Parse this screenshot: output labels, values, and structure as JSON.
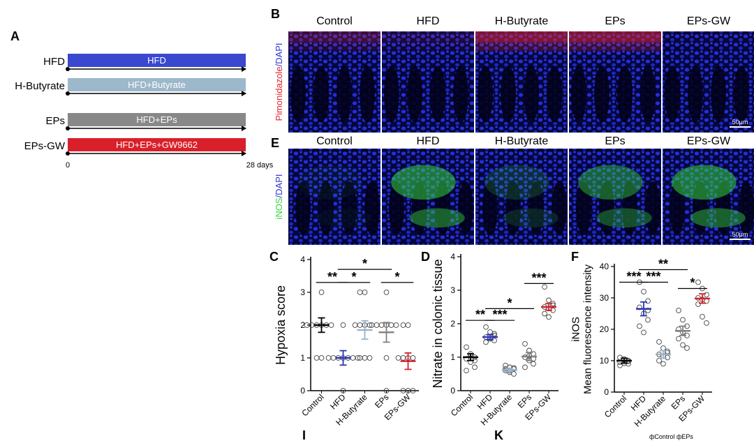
{
  "panels": {
    "A": "A",
    "B": "B",
    "C": "C",
    "D": "D",
    "E": "E",
    "F": "F",
    "G": "I",
    "H": "K"
  },
  "timeline": {
    "rows": [
      {
        "name": "HFD",
        "bar_label": "HFD",
        "color": "#3a47cf",
        "text_color": "#ffffff"
      },
      {
        "name": "H-Butyrate",
        "bar_label": "HFD+Butyrate",
        "color": "#9db8cb",
        "text_color": "#ffffff"
      },
      {
        "name": "EPs",
        "bar_label": "HFD+EPs",
        "color": "#888888",
        "text_color": "#ffffff"
      },
      {
        "name": "EPs-GW",
        "bar_label": "HFD+EPs+GW9662",
        "color": "#d9202a",
        "text_color": "#ffffff"
      }
    ],
    "axis_start": "0",
    "axis_end": "28 days"
  },
  "microscopy": {
    "groups": [
      "Control",
      "HFD",
      "H-Butyrate",
      "EPs",
      "EPs-GW"
    ],
    "row_b": {
      "label_red": "Pimonidazole",
      "label_blue": "/DAPI",
      "stain_color": "#e0232f",
      "scale_bar": "50μm"
    },
    "row_e": {
      "label_green": "iNOS",
      "label_blue": "/DAPI",
      "stain_color": "#35d33c",
      "scale_bar": "50μm"
    }
  },
  "chart_data": [
    {
      "type": "scatter",
      "panel": "C",
      "title": "",
      "xlabel": "",
      "ylabel": "Hypoxia score",
      "ylim": [
        0,
        4
      ],
      "yticks": [
        0,
        1,
        2,
        3,
        4
      ],
      "categories": [
        "Control",
        "HFD",
        "H-Butyrate",
        "EPs",
        "EPs-GW"
      ],
      "colors": [
        "#000000",
        "#2a35b8",
        "#9ab3c8",
        "#808080",
        "#d9202a"
      ],
      "means": [
        2.0,
        1.0,
        1.85,
        1.78,
        0.9
      ],
      "errors": [
        0.22,
        0.22,
        0.28,
        0.3,
        0.25
      ],
      "points": [
        [
          3,
          2,
          2,
          2,
          2,
          2,
          1,
          1,
          2
        ],
        [
          2,
          1,
          1,
          1,
          1,
          1,
          1,
          0,
          1
        ],
        [
          3,
          3,
          2,
          2,
          2,
          1,
          1,
          1,
          2
        ],
        [
          3,
          2,
          2,
          2,
          2,
          2,
          1,
          0,
          2
        ],
        [
          2,
          2,
          1,
          1,
          1,
          0,
          0,
          1,
          0
        ]
      ],
      "significance": [
        {
          "from": 0,
          "to": 1,
          "label": "**",
          "y": 3.3
        },
        {
          "from": 1,
          "to": 2,
          "label": "*",
          "y": 3.3
        },
        {
          "from": 1,
          "to": 3,
          "label": "*",
          "y": 3.7
        },
        {
          "from": 3,
          "to": 4,
          "label": "*",
          "y": 3.3
        }
      ]
    },
    {
      "type": "scatter",
      "panel": "D",
      "title": "",
      "xlabel": "",
      "ylabel": "Nitrate in colonic tissue",
      "ylim": [
        0,
        4
      ],
      "yticks": [
        0,
        1,
        2,
        3,
        4
      ],
      "categories": [
        "Control",
        "HFD",
        "H-Butyrate",
        "EPs",
        "EPs-GW"
      ],
      "colors": [
        "#000000",
        "#2a35b8",
        "#9ab3c8",
        "#808080",
        "#d9202a"
      ],
      "means": [
        1.0,
        1.6,
        0.62,
        1.02,
        2.5
      ],
      "errors": [
        0.1,
        0.08,
        0.05,
        0.12,
        0.1
      ],
      "points": [
        [
          1.3,
          1.1,
          1.0,
          0.95,
          0.85,
          0.7,
          0.6,
          1.05,
          0.9
        ],
        [
          1.9,
          1.75,
          1.65,
          1.6,
          1.55,
          1.5,
          1.45,
          1.6,
          1.7
        ],
        [
          0.75,
          0.7,
          0.65,
          0.6,
          0.55,
          0.5,
          0.65,
          0.6,
          0.68
        ],
        [
          1.4,
          1.2,
          1.1,
          1.0,
          0.9,
          0.8,
          0.7,
          1.05,
          0.95
        ],
        [
          3.1,
          2.7,
          2.6,
          2.5,
          2.45,
          2.4,
          2.3,
          2.2,
          2.55
        ]
      ],
      "significance": [
        {
          "from": 0,
          "to": 1,
          "label": "**",
          "y": 2.1
        },
        {
          "from": 1,
          "to": 2,
          "label": "***",
          "y": 2.1
        },
        {
          "from": 1,
          "to": 3,
          "label": "*",
          "y": 2.45
        },
        {
          "from": 3,
          "to": 4,
          "label": "***",
          "y": 3.2
        }
      ]
    },
    {
      "type": "scatter",
      "panel": "F",
      "title": "",
      "xlabel": "",
      "ylabel": "iNOS\nMean fluorescence intensity",
      "ylim": [
        0,
        40
      ],
      "yticks": [
        0,
        10,
        20,
        30,
        40
      ],
      "categories": [
        "Control",
        "HFD",
        "H-Butyrate",
        "EPs",
        "EPs-GW"
      ],
      "colors": [
        "#000000",
        "#2a35b8",
        "#9ab3c8",
        "#808080",
        "#d9202a"
      ],
      "means": [
        10,
        26.5,
        12,
        19.5,
        29.8
      ],
      "errors": [
        0.8,
        2.2,
        1.2,
        1.5,
        1.5
      ],
      "points": [
        [
          11,
          10.5,
          10,
          9.5,
          9.2,
          9,
          8.5,
          10.2,
          9.8
        ],
        [
          35,
          32,
          29,
          27,
          25,
          23,
          21,
          19,
          26
        ],
        [
          16,
          14,
          13,
          12,
          11.5,
          11,
          10,
          9,
          12.5
        ],
        [
          26,
          23,
          21,
          20,
          19,
          18,
          17,
          15,
          14
        ],
        [
          35,
          33,
          31,
          30,
          29.5,
          29,
          28,
          24,
          22
        ]
      ],
      "significance": [
        {
          "from": 0,
          "to": 1,
          "label": "***",
          "y": 35
        },
        {
          "from": 1,
          "to": 2,
          "label": "***",
          "y": 35
        },
        {
          "from": 1,
          "to": 3,
          "label": "**",
          "y": 39
        },
        {
          "from": 3,
          "to": 4,
          "label": "*",
          "y": 33
        }
      ]
    }
  ],
  "footer_legend": {
    "a": "Control",
    "b": "EPs"
  }
}
